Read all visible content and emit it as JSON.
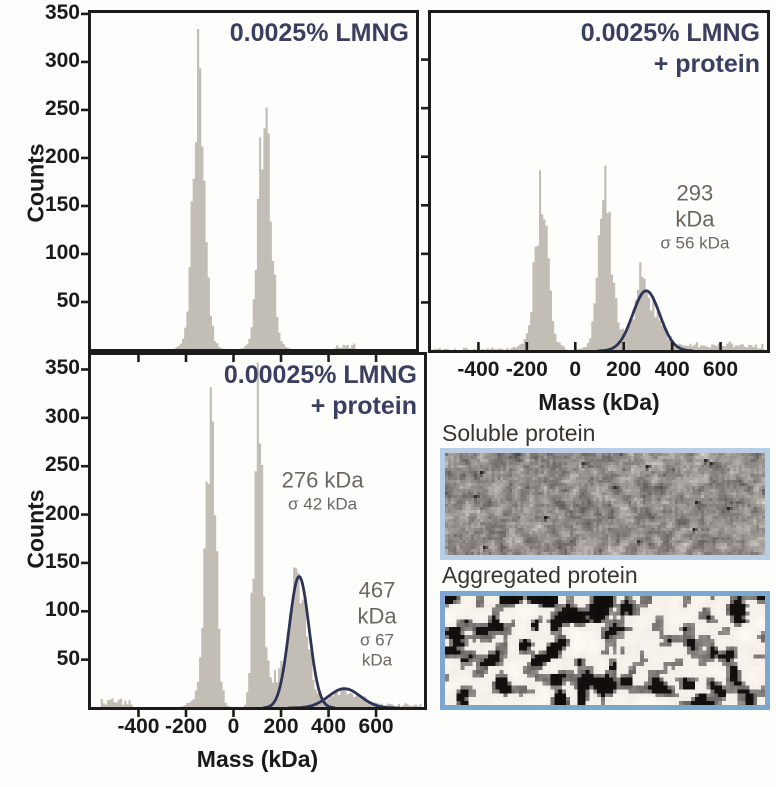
{
  "figure": {
    "bg": "#fdfdfb",
    "axis_color": "#1c1c1c",
    "tick_text_color": "#1a1a1a",
    "title_color": "#3a3f61",
    "fit_curve_color": "#2e3456",
    "hist_fill_color": "#c3beb5",
    "annotation_color": "#6b6760"
  },
  "chart_data": [
    {
      "id": "top-left",
      "type": "bar",
      "title": "0.0025% LMNG",
      "subtitle": "",
      "xlabel": "",
      "ylabel": "Counts",
      "xlim": [
        -604,
        771
      ],
      "ylim": [
        0,
        352
      ],
      "xticks": [
        -400,
        -200,
        0,
        200,
        400,
        600
      ],
      "yticks": [
        50,
        100,
        150,
        200,
        250,
        300,
        350
      ],
      "show_xtick_labels": false,
      "show_ytick_labels": true,
      "xtick_side": "none",
      "ytick_side": "out",
      "top_inner_ticks": false,
      "bin_kda": 9,
      "seed": 7,
      "peaks": [
        {
          "center_kda": -146,
          "sigma_kda": 24,
          "peak_counts": 285
        },
        {
          "center_kda": -146,
          "sigma_kda": 48,
          "peak_counts": 16
        },
        {
          "center_kda": 133,
          "sigma_kda": 24,
          "peak_counts": 268
        },
        {
          "center_kda": 133,
          "sigma_kda": 48,
          "peak_counts": 14
        }
      ],
      "noise_bands": [
        {
          "from_kda": 420,
          "to_kda": 510,
          "counts": 5
        }
      ],
      "fits": [],
      "annotations": []
    },
    {
      "id": "top-right",
      "type": "bar",
      "title": "0.0025% LMNG",
      "subtitle": "+ protein",
      "xlabel": "Mass (kDa)",
      "ylabel": "",
      "xlim": [
        -600,
        796
      ],
      "ylim": [
        0,
        349
      ],
      "xticks": [
        -400,
        -200,
        0,
        200,
        400,
        600
      ],
      "yticks": [
        50,
        100,
        150,
        200,
        250,
        300
      ],
      "show_xtick_labels": true,
      "show_ytick_labels": false,
      "xtick_side": "in",
      "ytick_side": "out",
      "top_inner_ticks": false,
      "bin_kda": 9,
      "seed": 101,
      "peaks": [
        {
          "center_kda": -140,
          "sigma_kda": 26,
          "peak_counts": 142
        },
        {
          "center_kda": -140,
          "sigma_kda": 55,
          "peak_counts": 9
        },
        {
          "center_kda": 125,
          "sigma_kda": 26,
          "peak_counts": 147
        },
        {
          "center_kda": 125,
          "sigma_kda": 55,
          "peak_counts": 11
        },
        {
          "center_kda": 293,
          "sigma_kda": 56,
          "peak_counts": 52
        },
        {
          "center_kda": 268,
          "sigma_kda": 12,
          "peak_counts": 26
        }
      ],
      "noise_bands": [
        {
          "from_kda": -590,
          "to_kda": -45,
          "counts": 3
        },
        {
          "from_kda": 50,
          "to_kda": 788,
          "counts": 3
        },
        {
          "from_kda": 430,
          "to_kda": 780,
          "counts": 5
        }
      ],
      "fits": [
        {
          "center_kda": 293,
          "sigma_kda": 56,
          "peak_counts": 62
        }
      ],
      "annotations": [
        {
          "text": "293 kDa",
          "sub": "σ 56 kDa",
          "x_kda": 494,
          "y_counts": 138
        }
      ]
    },
    {
      "id": "bottom-left",
      "type": "bar",
      "title": "0.00025% LMNG",
      "subtitle": "+ protein",
      "xlabel": "Mass (kDa)",
      "ylabel": "Counts",
      "xlim": [
        -604,
        806
      ],
      "ylim": [
        0,
        366
      ],
      "xticks": [
        -400,
        -200,
        0,
        200,
        400,
        600
      ],
      "yticks": [
        50,
        100,
        150,
        200,
        250,
        300,
        350
      ],
      "show_xtick_labels": true,
      "show_ytick_labels": true,
      "xtick_side": "out",
      "ytick_side": "out",
      "top_inner_ticks": true,
      "bin_kda": 9,
      "seed": 5,
      "peaks": [
        {
          "center_kda": -95,
          "sigma_kda": 21,
          "peak_counts": 298
        },
        {
          "center_kda": -120,
          "sigma_kda": 44,
          "peak_counts": 18
        },
        {
          "center_kda": 105,
          "sigma_kda": 19,
          "peak_counts": 320
        },
        {
          "center_kda": 180,
          "sigma_kda": 32,
          "peak_counts": 30
        },
        {
          "center_kda": 276,
          "sigma_kda": 36,
          "peak_counts": 138
        },
        {
          "center_kda": 467,
          "sigma_kda": 65,
          "peak_counts": 18
        }
      ],
      "noise_bands": [
        {
          "from_kda": -560,
          "to_kda": -420,
          "counts": 9
        },
        {
          "from_kda": 520,
          "to_kda": 790,
          "counts": 4
        }
      ],
      "fits": [
        {
          "center_kda": 276,
          "sigma_kda": 42,
          "peak_counts": 136
        },
        {
          "center_kda": 467,
          "sigma_kda": 67,
          "peak_counts": 20
        }
      ],
      "annotations": [
        {
          "text": "276 kDa",
          "sub": "σ 42 kDa",
          "x_kda": 375,
          "y_counts": 224
        },
        {
          "text": "467 kDa",
          "sub": "σ 67 kDa",
          "x_kda": 604,
          "y_counts": 87
        }
      ]
    }
  ],
  "micrographs": {
    "soluble": {
      "label": "Soluble protein",
      "border_color": "#b7cee6",
      "style": "fine low-contrast gray noise with sparse dark particles"
    },
    "aggregated": {
      "label": "Aggregated protein",
      "border_color": "#7fa6d2",
      "style": "high-contrast coarse black/white speckle"
    }
  }
}
